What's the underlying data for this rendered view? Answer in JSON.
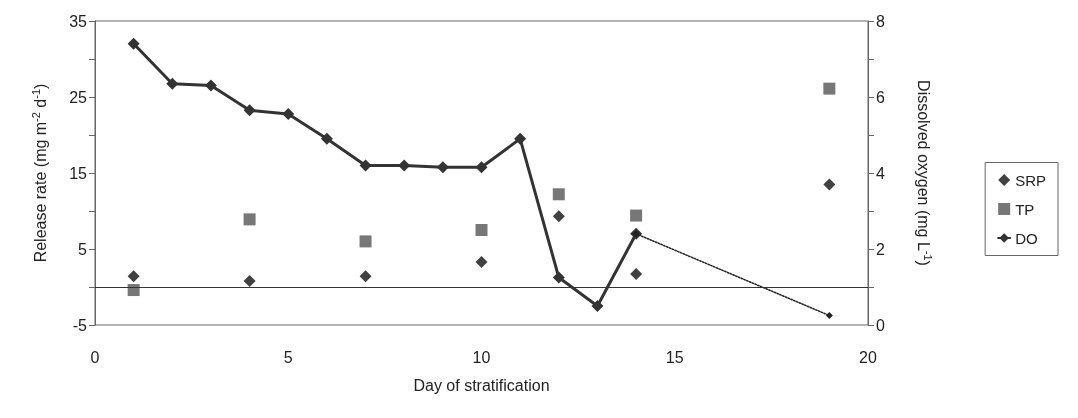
{
  "chart_data": {
    "type": "scatter",
    "xlabel": "Day of stratification",
    "ylabel": "Release rate (mg m$^{-2}$ d$^{-1}$)",
    "y2label": "Dissolved oxygen (mg L$^{-1}$)",
    "xlim": [
      0,
      20
    ],
    "xticks": [
      0,
      5,
      10,
      15,
      20
    ],
    "ylim": [
      -5,
      35
    ],
    "yticks": [
      -5,
      {
        "value": 0,
        "label": null
      },
      5,
      {
        "value": 10,
        "label": null
      },
      15,
      {
        "value": 20,
        "label": null
      },
      25,
      {
        "value": 30,
        "label": null
      },
      35
    ],
    "y2lim": [
      0,
      8
    ],
    "y2ticks": [
      0,
      {
        "value": 1,
        "label": null
      },
      2,
      {
        "value": 3,
        "label": null
      },
      4,
      {
        "value": 5,
        "label": null
      },
      6,
      {
        "value": 7,
        "label": null
      },
      8
    ],
    "series": [
      {
        "name": "SRP",
        "marker": "diamond",
        "color": "#111111",
        "x": [
          1,
          4,
          7,
          10,
          12,
          14,
          19
        ],
        "values": [
          1.4,
          0.8,
          1.4,
          3.3,
          9.3,
          1.7,
          13.5
        ]
      },
      {
        "name": "TP",
        "marker": "square",
        "color": "#555555",
        "x": [
          1,
          4,
          7,
          10,
          12,
          14,
          19
        ],
        "values": [
          -0.4,
          8.9,
          6.0,
          7.5,
          12.2,
          9.4,
          26.1
        ]
      },
      {
        "name": "DO",
        "type": "line",
        "marker": "diamond",
        "line_style": "solid",
        "axis": "y2",
        "color": "#333333",
        "x": [
          1,
          2,
          3,
          4,
          5,
          6,
          7,
          8,
          9,
          10,
          11,
          12,
          13,
          14
        ],
        "values": [
          7.4,
          6.35,
          6.3,
          5.65,
          5.55,
          4.9,
          4.2,
          4.2,
          4.15,
          4.15,
          4.9,
          1.25,
          0.5,
          2.4
        ]
      },
      {
        "type": "line",
        "marker": "diamond",
        "line_style": "dotted",
        "axis": "y2",
        "color": "#222222",
        "x": [
          14,
          19
        ],
        "values": [
          2.4,
          0.25
        ]
      }
    ],
    "ref_lines": [
      {
        "axis": "y",
        "value": 0,
        "color": "#333333"
      }
    ],
    "grid": false,
    "legend": "right"
  }
}
